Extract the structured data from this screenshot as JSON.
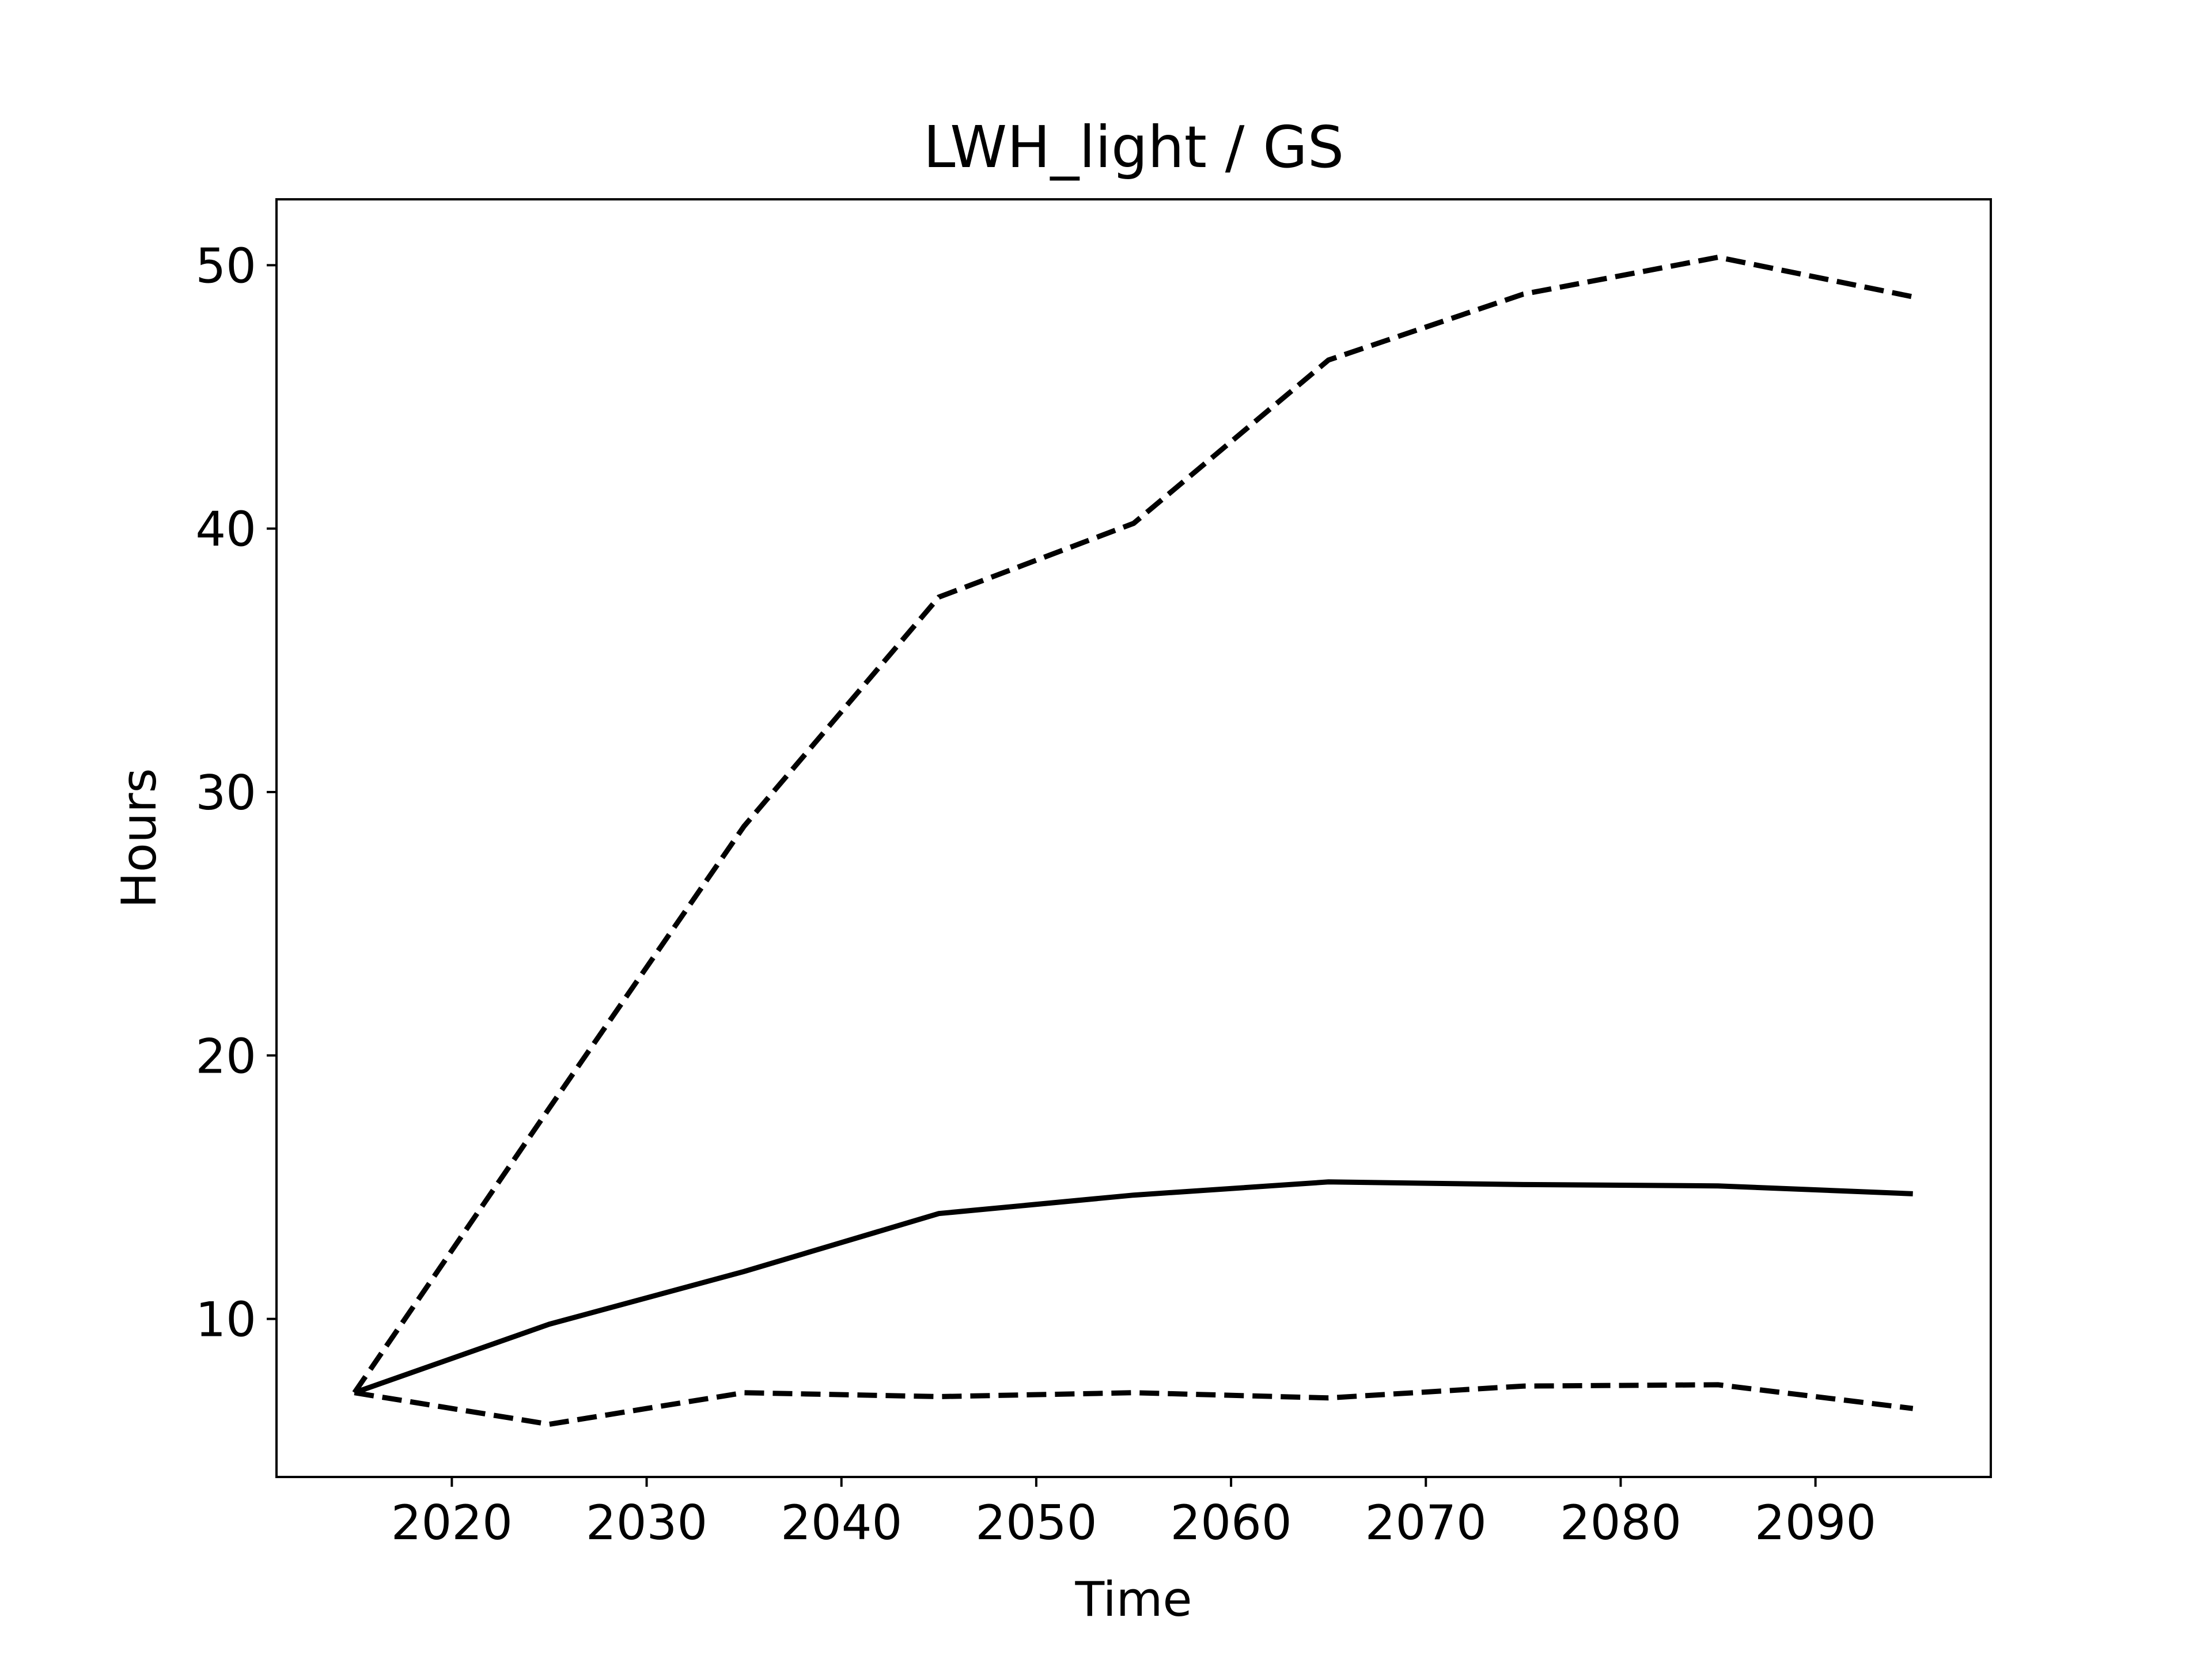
{
  "chart_data": {
    "type": "line",
    "title": "LWH_light / GS",
    "xlabel": "Time",
    "ylabel": "Hours",
    "xlim": [
      2011,
      2099
    ],
    "ylim": [
      4.0,
      52.5
    ],
    "xticks": [
      2020,
      2030,
      2040,
      2050,
      2060,
      2070,
      2080,
      2090
    ],
    "yticks": [
      10,
      20,
      30,
      40,
      50
    ],
    "grid": false,
    "legend": "none",
    "line_color": "#000000",
    "x": [
      2015,
      2025,
      2035,
      2045,
      2055,
      2065,
      2075,
      2085,
      2095
    ],
    "series": [
      {
        "style": "dashed",
        "values": [
          7.2,
          18.0,
          28.7,
          37.4,
          40.2,
          46.4,
          48.9,
          50.3,
          48.8
        ]
      },
      {
        "style": "solid",
        "values": [
          7.2,
          9.8,
          11.8,
          14.0,
          14.7,
          15.2,
          15.1,
          15.05,
          14.75
        ]
      },
      {
        "style": "dashed",
        "values": [
          7.2,
          6.0,
          7.2,
          7.05,
          7.2,
          7.0,
          7.45,
          7.5,
          6.6
        ]
      }
    ]
  }
}
